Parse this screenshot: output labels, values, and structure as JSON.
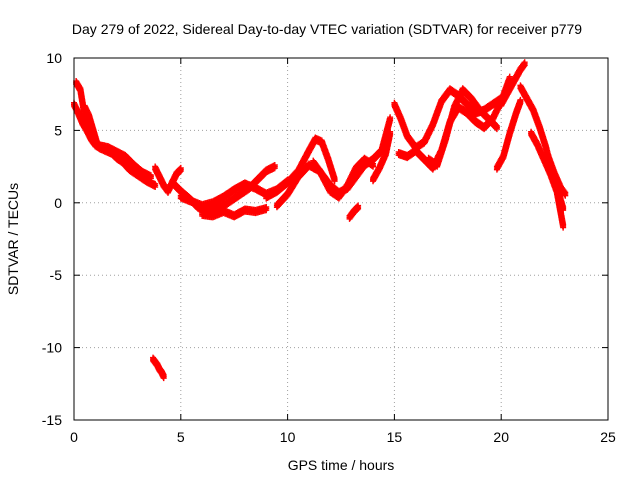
{
  "chart_data": {
    "type": "scatter",
    "title": "Day 279 of 2022, Sidereal Day-to-day VTEC variation (SDTVAR) for receiver p779",
    "xlabel": "GPS time / hours",
    "ylabel": "SDTVAR / TECUs",
    "xlim": [
      0,
      25
    ],
    "ylim": [
      -15,
      10
    ],
    "xticks": [
      0,
      5,
      10,
      15,
      20,
      25
    ],
    "yticks": [
      -15,
      -10,
      -5,
      0,
      5,
      10
    ],
    "grid": true,
    "marker": "+",
    "color": "#ff0000",
    "series": [
      {
        "name": "track-a",
        "x": [
          0.0,
          0.2,
          0.4,
          0.6,
          0.8,
          1.0,
          1.2,
          1.5,
          1.8,
          2.0,
          2.3,
          2.6,
          3.0,
          3.4,
          3.8
        ],
        "y": [
          6.8,
          6.2,
          5.5,
          5.0,
          4.4,
          4.0,
          3.8,
          3.6,
          3.4,
          3.1,
          2.8,
          2.3,
          1.9,
          1.5,
          1.2
        ]
      },
      {
        "name": "track-b",
        "x": [
          0.1,
          0.3,
          0.5,
          0.8,
          1.0,
          1.3,
          1.6,
          2.0,
          2.4,
          2.8,
          3.2,
          3.6
        ],
        "y": [
          8.3,
          7.8,
          6.0,
          4.6,
          4.0,
          3.9,
          3.8,
          3.5,
          3.2,
          2.6,
          2.1,
          1.8
        ]
      },
      {
        "name": "track-c",
        "x": [
          0.5,
          0.7,
          0.9,
          1.1
        ],
        "y": [
          6.6,
          6.0,
          5.0,
          4.0
        ]
      },
      {
        "name": "track-d",
        "x": [
          3.8,
          4.0,
          4.2,
          4.4,
          4.6,
          4.8,
          5.0
        ],
        "y": [
          2.4,
          1.8,
          1.2,
          0.8,
          1.4,
          2.0,
          2.3
        ]
      },
      {
        "name": "track-e",
        "x": [
          4.6,
          5.0,
          5.4,
          5.8,
          6.2,
          6.6,
          7.0,
          7.4,
          7.8,
          8.2,
          8.6,
          9.0,
          9.4
        ],
        "y": [
          1.4,
          0.8,
          0.3,
          -0.3,
          -0.6,
          -0.4,
          -0.2,
          0.2,
          0.6,
          1.0,
          1.6,
          2.2,
          2.5
        ]
      },
      {
        "name": "track-f",
        "x": [
          5.0,
          5.5,
          6.0,
          6.5,
          7.0,
          7.5,
          8.0,
          8.5,
          9.0,
          9.5,
          10.0
        ],
        "y": [
          0.4,
          0.1,
          -0.2,
          0.0,
          0.4,
          0.9,
          1.3,
          1.0,
          0.6,
          0.9,
          1.5
        ]
      },
      {
        "name": "track-g",
        "x": [
          6.0,
          6.5,
          7.0,
          7.5,
          8.0,
          8.5,
          9.0
        ],
        "y": [
          -0.8,
          -0.9,
          -0.6,
          -0.9,
          -0.5,
          -0.6,
          -0.4
        ]
      },
      {
        "name": "track-h",
        "x": [
          9.0,
          9.5,
          10.0,
          10.5,
          11.0,
          11.3,
          11.6,
          11.9,
          12.2
        ],
        "y": [
          0.4,
          0.8,
          1.4,
          2.2,
          3.6,
          4.4,
          4.2,
          3.0,
          1.6
        ]
      },
      {
        "name": "track-i",
        "x": [
          9.5,
          10.0,
          10.5,
          11.0,
          11.5,
          12.0,
          12.4,
          12.8,
          13.2,
          13.6,
          14.0
        ],
        "y": [
          -0.2,
          0.6,
          1.8,
          2.6,
          2.2,
          0.8,
          0.4,
          1.2,
          2.4,
          3.0,
          2.6
        ]
      },
      {
        "name": "track-j",
        "x": [
          11.2,
          11.6,
          12.0,
          12.4,
          12.8,
          13.2,
          13.6,
          14.0,
          14.4,
          14.8
        ],
        "y": [
          2.8,
          2.0,
          1.2,
          0.7,
          1.0,
          1.8,
          2.6,
          3.0,
          3.6,
          5.8
        ]
      },
      {
        "name": "track-k",
        "x": [
          12.9,
          13.1,
          13.3
        ],
        "y": [
          -1.0,
          -0.6,
          -0.3
        ]
      },
      {
        "name": "track-l",
        "x": [
          14.0,
          14.3,
          14.6,
          14.8
        ],
        "y": [
          1.6,
          2.4,
          3.4,
          4.8
        ]
      },
      {
        "name": "track-m",
        "x": [
          15.0,
          15.3,
          15.6,
          16.0,
          16.4,
          16.8,
          17.2,
          17.6,
          18.0,
          18.4,
          18.8,
          19.2,
          19.6,
          20.0
        ],
        "y": [
          6.8,
          5.8,
          4.6,
          3.8,
          4.2,
          5.4,
          7.0,
          7.8,
          7.4,
          6.8,
          6.2,
          6.4,
          6.8,
          7.2
        ]
      },
      {
        "name": "track-n",
        "x": [
          15.2,
          15.6,
          16.0,
          16.4,
          16.8,
          17.2,
          17.6,
          18.0,
          18.4,
          18.8,
          19.2,
          19.6,
          20.0,
          20.4
        ],
        "y": [
          3.4,
          3.2,
          3.6,
          3.0,
          2.4,
          3.6,
          5.6,
          6.6,
          6.2,
          5.6,
          5.2,
          5.8,
          7.0,
          8.6
        ]
      },
      {
        "name": "track-o",
        "x": [
          16.6,
          17.0,
          17.4,
          17.8,
          18.2,
          18.6,
          19.0,
          19.4,
          19.8
        ],
        "y": [
          3.0,
          2.6,
          4.4,
          6.6,
          7.8,
          7.2,
          6.4,
          5.8,
          5.2
        ]
      },
      {
        "name": "track-p",
        "x": [
          19.8,
          20.1,
          20.4,
          20.7,
          20.9
        ],
        "y": [
          2.4,
          3.2,
          4.8,
          6.2,
          7.0
        ]
      },
      {
        "name": "track-q",
        "x": [
          20.0,
          20.3,
          20.6,
          20.9,
          21.1
        ],
        "y": [
          6.8,
          7.6,
          8.4,
          9.2,
          9.6
        ]
      },
      {
        "name": "track-r",
        "x": [
          20.9,
          21.2,
          21.5,
          21.8,
          22.1,
          22.4,
          22.7,
          22.9
        ],
        "y": [
          8.0,
          7.2,
          6.4,
          5.2,
          3.8,
          2.0,
          0.6,
          -0.4
        ]
      },
      {
        "name": "track-s",
        "x": [
          21.4,
          21.7,
          22.0,
          22.3,
          22.6,
          22.9
        ],
        "y": [
          4.8,
          4.0,
          3.0,
          2.0,
          0.8,
          -1.6
        ]
      },
      {
        "name": "track-t",
        "x": [
          22.2,
          22.5,
          22.8,
          23.0
        ],
        "y": [
          3.2,
          2.0,
          1.0,
          0.6
        ]
      },
      {
        "name": "outlier",
        "x": [
          3.7,
          3.8,
          3.9,
          4.0,
          4.1,
          4.2
        ],
        "y": [
          -10.8,
          -11.0,
          -11.2,
          -11.5,
          -11.7,
          -12.0
        ]
      }
    ]
  }
}
